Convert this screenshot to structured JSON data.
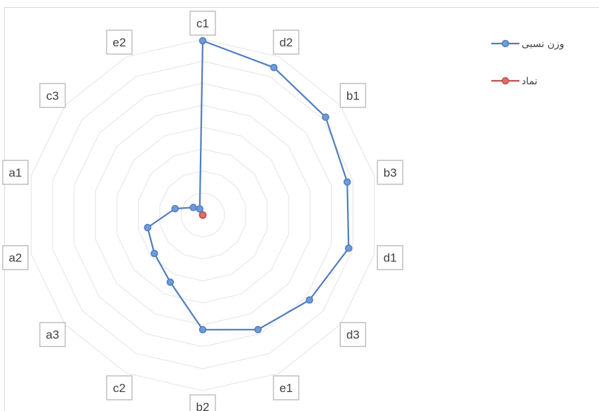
{
  "chart_data": {
    "type": "radar",
    "categories": [
      "c1",
      "d2",
      "b1",
      "b3",
      "d1",
      "d3",
      "e1",
      "b2",
      "c2",
      "a3",
      "a2",
      "a1",
      "c3",
      "e2"
    ],
    "series": [
      {
        "name": "وزن نسبی",
        "color": "#4f7dc0",
        "marker_fill": "#6f9bd8",
        "values": [
          0.0855,
          0.0803,
          0.077,
          0.0726,
          0.0733,
          0.0669,
          0.0624,
          0.0563,
          0.0366,
          0.0303,
          0.0277,
          0.0139,
          0.0059,
          0.0033
        ]
      },
      {
        "name": "نماد",
        "color": "#c0504d",
        "marker_fill": "#d9706c",
        "values": [
          0,
          0,
          0,
          0,
          0,
          0,
          0,
          0,
          0,
          0,
          0,
          0,
          0,
          0
        ]
      }
    ],
    "rmax": 0.0855,
    "ring_count": 8,
    "grid": true,
    "legend_position": "top-right"
  }
}
